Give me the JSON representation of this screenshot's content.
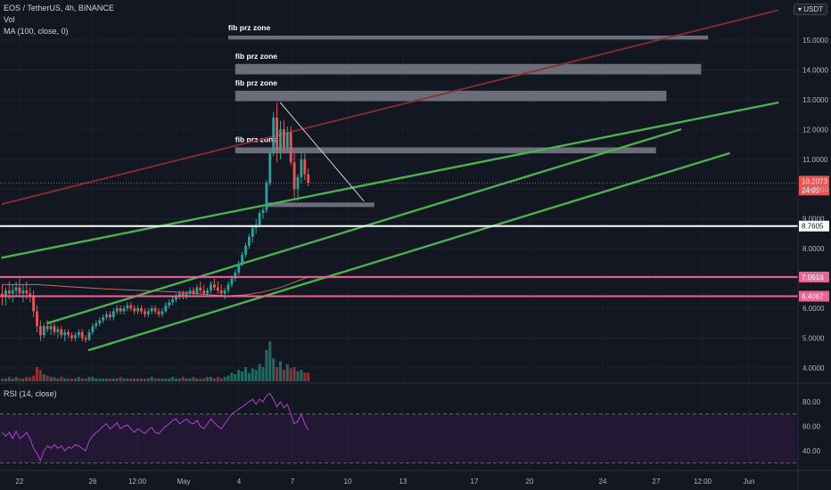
{
  "header": {
    "symbol_line": "EOS / TetherUS, 4h, BINANCE",
    "vol_label": "Vol",
    "ma_label": "MA (100, close, 0)",
    "currency": "USDT",
    "rsi_label": "RSI (14, close)"
  },
  "colors": {
    "background": "#131722",
    "up": "#26a69a",
    "down": "#ef5350",
    "channel": "#4caf50",
    "red_trend": "#8b2f2f",
    "support": "#f06292",
    "rsi": "#b041d6",
    "rsi_band": "#2a1a3a"
  },
  "chart_data": [
    {
      "type": "candlestick",
      "title": "EOS / TetherUS, 4h, BINANCE",
      "x_tick_labels": [
        "22",
        "26",
        "12:00",
        "May",
        "4",
        "7",
        "10",
        "13",
        "17",
        "20",
        "24",
        "27",
        "12:00",
        "Jun"
      ],
      "y_tick_labels": [
        "4.0000",
        "5.0000",
        "6.0000",
        "7.0000",
        "8.0000",
        "9.0000",
        "10.0000",
        "11.0000",
        "12.0000",
        "13.0000",
        "14.0000",
        "15.0000"
      ],
      "ylim": [
        3.5,
        16.2
      ],
      "last_price": {
        "value": 10.2073,
        "label": "10.2073",
        "countdown": "24:01"
      },
      "price_labels": [
        {
          "value": 8.7605,
          "label": "8.7605",
          "color": "#ffffff"
        },
        {
          "value": 7.0513,
          "label": "7.0513",
          "color": "#f06292"
        },
        {
          "value": 6.4067,
          "label": "6.4067",
          "color": "#f06292"
        }
      ],
      "horizontal_lines": [
        {
          "price": 8.7605,
          "color": "#ffffff"
        },
        {
          "price": 7.0513,
          "color": "#f06292"
        },
        {
          "price": 6.4067,
          "color": "#f06292"
        }
      ],
      "fib_zones": [
        {
          "label": "fib prz zone",
          "price_top": 15.15,
          "price_bottom": 15.02,
          "bar_start": 65,
          "bar_end": 203
        },
        {
          "label": "fib prz zone",
          "price_top": 14.2,
          "price_bottom": 13.85,
          "bar_start": 67,
          "bar_end": 201
        },
        {
          "label": "fib prz zone",
          "price_top": 13.3,
          "price_bottom": 12.95,
          "bar_start": 67,
          "bar_end": 191
        },
        {
          "label": "fib prz zone",
          "price_top": 11.4,
          "price_bottom": 11.2,
          "bar_start": 67,
          "bar_end": 188
        },
        {
          "label": "",
          "price_top": 9.55,
          "price_bottom": 9.4,
          "bar_start": 76,
          "bar_end": 107
        }
      ],
      "trend_lines": [
        {
          "name": "red-trend",
          "color": "#8b2f2f",
          "from": [
            0,
            9.5
          ],
          "to": [
            223,
            16.0
          ]
        },
        {
          "name": "channel-upper",
          "color": "#4caf50",
          "from": [
            0,
            7.7
          ],
          "to": [
            223,
            12.9
          ]
        },
        {
          "name": "channel-middle",
          "color": "#4caf50",
          "from": [
            13,
            5.5
          ],
          "to": [
            195,
            12.0
          ]
        },
        {
          "name": "channel-lower",
          "color": "#4caf50",
          "from": [
            25,
            4.6
          ],
          "to": [
            209,
            11.2
          ]
        },
        {
          "name": "descending",
          "color": "#cfd2d8",
          "from": [
            80,
            12.9
          ],
          "to": [
            104,
            9.6
          ]
        }
      ],
      "candles": [
        [
          6.5,
          6.8,
          6.1,
          6.4
        ],
        [
          6.4,
          6.7,
          6.1,
          6.6
        ],
        [
          6.6,
          6.9,
          6.3,
          6.5
        ],
        [
          6.5,
          6.8,
          6.2,
          6.6
        ],
        [
          6.6,
          6.9,
          6.4,
          6.7
        ],
        [
          6.7,
          7.0,
          6.4,
          6.5
        ],
        [
          6.5,
          6.8,
          6.2,
          6.6
        ],
        [
          6.6,
          6.9,
          6.3,
          6.5
        ],
        [
          6.5,
          6.7,
          6.2,
          6.4
        ],
        [
          6.4,
          6.6,
          5.7,
          5.9
        ],
        [
          5.9,
          6.1,
          5.2,
          5.4
        ],
        [
          5.4,
          5.6,
          4.9,
          5.1
        ],
        [
          5.1,
          5.5,
          5.0,
          5.4
        ],
        [
          5.4,
          5.6,
          5.2,
          5.3
        ],
        [
          5.3,
          5.5,
          5.1,
          5.4
        ],
        [
          5.4,
          5.5,
          5.1,
          5.2
        ],
        [
          5.2,
          5.4,
          5.0,
          5.3
        ],
        [
          5.3,
          5.4,
          5.0,
          5.1
        ],
        [
          5.1,
          5.3,
          4.9,
          5.2
        ],
        [
          5.2,
          5.3,
          5.0,
          5.1
        ],
        [
          5.1,
          5.2,
          4.9,
          5.0
        ],
        [
          5.0,
          5.2,
          4.9,
          5.1
        ],
        [
          5.1,
          5.3,
          5.0,
          5.2
        ],
        [
          5.2,
          5.3,
          4.9,
          5.0
        ],
        [
          5.0,
          5.1,
          4.85,
          4.95
        ],
        [
          4.95,
          5.3,
          4.9,
          5.2
        ],
        [
          5.2,
          5.5,
          5.1,
          5.4
        ],
        [
          5.4,
          5.6,
          5.3,
          5.5
        ],
        [
          5.5,
          5.7,
          5.4,
          5.6
        ],
        [
          5.6,
          5.8,
          5.5,
          5.7
        ],
        [
          5.7,
          5.9,
          5.6,
          5.8
        ],
        [
          5.8,
          5.9,
          5.6,
          5.7
        ],
        [
          5.7,
          6.0,
          5.6,
          5.9
        ],
        [
          5.9,
          6.1,
          5.8,
          6.0
        ],
        [
          6.0,
          6.1,
          5.8,
          5.9
        ],
        [
          5.9,
          6.1,
          5.8,
          6.0
        ],
        [
          6.0,
          6.2,
          5.9,
          6.1
        ],
        [
          6.1,
          6.2,
          5.9,
          6.0
        ],
        [
          6.0,
          6.1,
          5.8,
          5.9
        ],
        [
          5.9,
          6.1,
          5.8,
          6.0
        ],
        [
          6.0,
          6.1,
          5.8,
          5.9
        ],
        [
          5.9,
          6.0,
          5.7,
          5.8
        ],
        [
          5.8,
          6.0,
          5.7,
          5.9
        ],
        [
          5.9,
          6.1,
          5.8,
          6.0
        ],
        [
          6.0,
          6.1,
          5.8,
          5.9
        ],
        [
          5.9,
          6.0,
          5.7,
          5.8
        ],
        [
          5.8,
          6.0,
          5.7,
          5.9
        ],
        [
          5.9,
          6.2,
          5.85,
          6.1
        ],
        [
          6.1,
          6.3,
          6.0,
          6.2
        ],
        [
          6.2,
          6.4,
          6.1,
          6.3
        ],
        [
          6.3,
          6.5,
          6.2,
          6.4
        ],
        [
          6.4,
          6.6,
          6.3,
          6.5
        ],
        [
          6.5,
          6.6,
          6.3,
          6.4
        ],
        [
          6.4,
          6.6,
          6.3,
          6.5
        ],
        [
          6.5,
          6.7,
          6.4,
          6.6
        ],
        [
          6.6,
          6.7,
          6.4,
          6.5
        ],
        [
          6.5,
          6.8,
          6.4,
          6.7
        ],
        [
          6.7,
          6.9,
          6.5,
          6.6
        ],
        [
          6.6,
          6.8,
          6.4,
          6.5
        ],
        [
          6.5,
          6.7,
          6.4,
          6.6
        ],
        [
          6.6,
          6.9,
          6.5,
          6.8
        ],
        [
          6.8,
          7.0,
          6.6,
          6.7
        ],
        [
          6.7,
          6.9,
          6.5,
          6.6
        ],
        [
          6.6,
          6.8,
          6.4,
          6.5
        ],
        [
          6.5,
          6.7,
          6.3,
          6.6
        ],
        [
          6.6,
          6.9,
          6.5,
          6.8
        ],
        [
          6.8,
          7.1,
          6.7,
          7.0
        ],
        [
          7.0,
          7.3,
          6.9,
          7.2
        ],
        [
          7.2,
          7.6,
          7.1,
          7.5
        ],
        [
          7.5,
          7.9,
          7.4,
          7.8
        ],
        [
          7.8,
          8.2,
          7.7,
          8.1
        ],
        [
          8.1,
          8.5,
          8.0,
          8.4
        ],
        [
          8.4,
          8.8,
          8.2,
          8.7
        ],
        [
          8.7,
          9.0,
          8.5,
          8.8
        ],
        [
          8.8,
          9.3,
          8.7,
          9.2
        ],
        [
          9.2,
          9.4,
          9.0,
          9.3
        ],
        [
          9.3,
          10.3,
          9.2,
          10.2
        ],
        [
          10.2,
          11.3,
          10.1,
          11.2
        ],
        [
          11.2,
          12.6,
          11.1,
          12.4
        ],
        [
          12.4,
          12.9,
          10.9,
          11.3
        ],
        [
          11.3,
          12.3,
          11.0,
          12.0
        ],
        [
          12.0,
          12.3,
          11.2,
          11.4
        ],
        [
          11.4,
          12.1,
          11.2,
          11.9
        ],
        [
          11.9,
          12.1,
          10.8,
          10.9
        ],
        [
          10.9,
          11.2,
          9.7,
          10.0
        ],
        [
          10.0,
          10.5,
          9.6,
          10.4
        ],
        [
          10.4,
          11.2,
          10.2,
          11.0
        ],
        [
          11.0,
          11.2,
          10.3,
          10.5
        ],
        [
          10.5,
          10.7,
          10.1,
          10.21
        ]
      ],
      "ma_100": [
        [
          0,
          6.8
        ],
        [
          10,
          6.8
        ],
        [
          20,
          6.72
        ],
        [
          30,
          6.65
        ],
        [
          40,
          6.6
        ],
        [
          50,
          6.55
        ],
        [
          60,
          6.45
        ],
        [
          65,
          6.42
        ],
        [
          70,
          6.45
        ],
        [
          75,
          6.55
        ],
        [
          80,
          6.7
        ],
        [
          88,
          7.05
        ]
      ],
      "volume": [
        2,
        2,
        3,
        2,
        3,
        2,
        2,
        3,
        3,
        4,
        10,
        8,
        5,
        4,
        3,
        3,
        2,
        3,
        2,
        2,
        2,
        2,
        3,
        2,
        2,
        3,
        3,
        2,
        2,
        2,
        2,
        2,
        2,
        2,
        3,
        2,
        2,
        2,
        2,
        2,
        2,
        2,
        2,
        3,
        2,
        2,
        2,
        2,
        2,
        3,
        2,
        2,
        3,
        2,
        2,
        3,
        2,
        2,
        2,
        3,
        3,
        2,
        3,
        2,
        3,
        4,
        6,
        5,
        8,
        7,
        10,
        6,
        9,
        8,
        12,
        10,
        22,
        28,
        16,
        10,
        14,
        8,
        12,
        9,
        10,
        7,
        8,
        6,
        6
      ],
      "rsi": {
        "name": "RSI (14, close)",
        "y_tick_labels": [
          "40.00",
          "60.00",
          "80.00"
        ],
        "ylim": [
          30,
          92
        ],
        "upper_band": 70,
        "lower_band": 30,
        "values": [
          55,
          52,
          55,
          50,
          56,
          50,
          52,
          55,
          50,
          42,
          38,
          32,
          40,
          44,
          42,
          45,
          42,
          44,
          40,
          43,
          42,
          45,
          44,
          42,
          40,
          48,
          52,
          55,
          57,
          60,
          62,
          58,
          60,
          63,
          58,
          60,
          61,
          58,
          55,
          58,
          56,
          54,
          57,
          59,
          55,
          54,
          57,
          60,
          62,
          65,
          66,
          62,
          64,
          66,
          63,
          62,
          65,
          60,
          58,
          62,
          66,
          63,
          60,
          58,
          62,
          66,
          70,
          72,
          74,
          76,
          78,
          80,
          82,
          78,
          82,
          80,
          85,
          87,
          82,
          76,
          80,
          75,
          78,
          70,
          62,
          64,
          70,
          62,
          57
        ]
      }
    }
  ]
}
